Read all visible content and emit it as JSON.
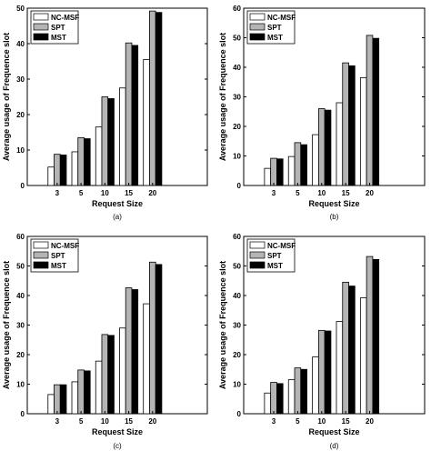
{
  "series_colors": {
    "NC-MSF": "#ffffff",
    "SPT": "#b4b4b4",
    "MST": "#000000"
  },
  "chart_data": [
    {
      "type": "bar",
      "panel_label": "(a)",
      "xlabel": "Request Size",
      "ylabel": "Average usage of Frequence slot",
      "categories": [
        "3",
        "5",
        "10",
        "15",
        "20"
      ],
      "ylim": [
        0,
        50
      ],
      "yticks": [
        0,
        10,
        20,
        30,
        40,
        50
      ],
      "legend_position": "top-left",
      "series": [
        {
          "name": "NC-MSF",
          "values": [
            5.2,
            9.5,
            16.5,
            27.5,
            35.5
          ]
        },
        {
          "name": "SPT",
          "values": [
            8.8,
            13.5,
            25.0,
            40.2,
            49.2
          ]
        },
        {
          "name": "MST",
          "values": [
            8.6,
            13.2,
            24.5,
            39.5,
            48.8
          ]
        }
      ]
    },
    {
      "type": "bar",
      "panel_label": "(b)",
      "xlabel": "Request Size",
      "ylabel": "Average usage of Frequence slot",
      "categories": [
        "3",
        "5",
        "10",
        "15",
        "20"
      ],
      "ylim": [
        0,
        60
      ],
      "yticks": [
        0,
        10,
        20,
        30,
        40,
        50,
        60
      ],
      "legend_position": "top-left",
      "series": [
        {
          "name": "NC-MSF",
          "values": [
            5.8,
            9.8,
            17.2,
            28.0,
            36.5
          ]
        },
        {
          "name": "SPT",
          "values": [
            9.2,
            14.5,
            26.0,
            41.5,
            50.8
          ]
        },
        {
          "name": "MST",
          "values": [
            9.0,
            13.8,
            25.5,
            40.5,
            49.8
          ]
        }
      ]
    },
    {
      "type": "bar",
      "panel_label": "(c)",
      "xlabel": "Request Size",
      "ylabel": "Average usage of Frequence slot",
      "categories": [
        "3",
        "5",
        "10",
        "15",
        "20"
      ],
      "ylim": [
        0,
        60
      ],
      "yticks": [
        0,
        10,
        20,
        30,
        40,
        50,
        60
      ],
      "legend_position": "top-left",
      "series": [
        {
          "name": "NC-MSF",
          "values": [
            6.5,
            10.8,
            17.8,
            29.0,
            37.2
          ]
        },
        {
          "name": "SPT",
          "values": [
            9.8,
            14.8,
            26.8,
            42.6,
            51.3
          ]
        },
        {
          "name": "MST",
          "values": [
            9.8,
            14.5,
            26.5,
            42.0,
            50.5
          ]
        }
      ]
    },
    {
      "type": "bar",
      "panel_label": "(d)",
      "xlabel": "Request Size",
      "ylabel": "Average usage of Frequence slot",
      "categories": [
        "3",
        "5",
        "10",
        "15",
        "20"
      ],
      "ylim": [
        0,
        60
      ],
      "yticks": [
        0,
        10,
        20,
        30,
        40,
        50,
        60
      ],
      "legend_position": "top-left",
      "series": [
        {
          "name": "NC-MSF",
          "values": [
            7.0,
            11.5,
            19.2,
            31.2,
            39.2
          ]
        },
        {
          "name": "SPT",
          "values": [
            10.6,
            15.5,
            28.2,
            44.5,
            53.2
          ]
        },
        {
          "name": "MST",
          "values": [
            10.2,
            15.0,
            28.0,
            43.2,
            52.2
          ]
        }
      ]
    }
  ]
}
